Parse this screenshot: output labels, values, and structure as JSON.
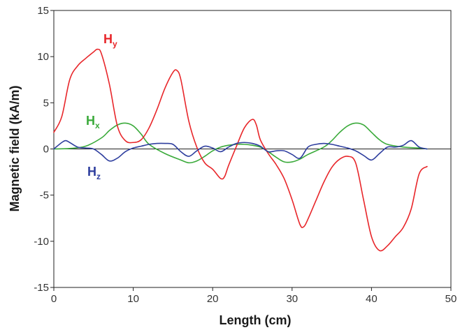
{
  "chart_data": {
    "type": "line",
    "title": "",
    "xlabel": "Length (cm)",
    "ylabel": "Magnetic field (kA/m)",
    "xlim": [
      0,
      50
    ],
    "ylim": [
      -15,
      15
    ],
    "xticks": [
      "0",
      "10",
      "20",
      "30",
      "40",
      "50"
    ],
    "yticks": [
      "15",
      "10",
      "5",
      "0",
      "-5",
      "-10",
      "-15"
    ],
    "grid": false,
    "zero_line": true,
    "series": [
      {
        "name": "Hy",
        "label_main": "H",
        "label_sub": "y",
        "color": "#e8262a",
        "x": [
          0,
          1,
          2,
          3,
          4,
          5,
          5.5,
          6,
          7,
          8,
          9,
          10,
          11,
          12,
          13,
          14,
          15,
          15.5,
          16,
          17,
          18,
          19,
          20,
          21,
          21.5,
          22,
          23,
          24,
          25,
          25.5,
          26,
          27,
          28,
          29,
          30,
          31,
          31.5,
          32,
          33,
          34,
          35,
          36,
          37,
          38,
          39,
          40,
          41,
          42,
          43,
          44,
          45,
          46,
          47
        ],
        "y": [
          1.8,
          3.5,
          7.5,
          9.0,
          9.8,
          10.5,
          10.8,
          10.3,
          7.0,
          2.5,
          0.9,
          0.7,
          1.0,
          2.3,
          4.3,
          6.6,
          8.3,
          8.5,
          7.5,
          3.0,
          0.2,
          -1.5,
          -2.2,
          -3.2,
          -3.0,
          -1.8,
          0.3,
          2.3,
          3.2,
          2.6,
          1.0,
          -0.5,
          -1.7,
          -3.2,
          -5.5,
          -8.2,
          -8.4,
          -7.6,
          -5.6,
          -3.6,
          -2.0,
          -1.1,
          -0.8,
          -1.5,
          -5.5,
          -9.5,
          -11.0,
          -10.5,
          -9.5,
          -8.5,
          -6.5,
          -2.7,
          -1.9
        ]
      },
      {
        "name": "Hx",
        "label_main": "H",
        "label_sub": "x",
        "color": "#3aaa3a",
        "x": [
          0,
          2,
          4,
          6,
          7,
          8,
          9,
          10,
          11,
          12,
          14,
          16,
          17,
          18,
          19,
          20,
          21,
          22,
          23,
          24,
          25,
          26,
          27,
          28,
          29,
          30,
          31,
          32,
          34,
          35,
          36,
          37,
          38,
          39,
          40,
          41,
          42,
          44,
          46,
          47
        ],
        "y": [
          0,
          0.05,
          0.3,
          1.2,
          2.0,
          2.6,
          2.8,
          2.5,
          1.6,
          0.5,
          -0.5,
          -1.2,
          -1.5,
          -1.3,
          -0.8,
          -0.2,
          0.2,
          0.4,
          0.5,
          0.5,
          0.4,
          0.2,
          -0.3,
          -0.9,
          -1.4,
          -1.4,
          -1.1,
          -0.6,
          0.2,
          0.9,
          1.8,
          2.5,
          2.8,
          2.6,
          1.8,
          1.0,
          0.5,
          0.2,
          0.1,
          0
        ]
      },
      {
        "name": "Hz",
        "label_main": "H",
        "label_sub": "z",
        "color": "#2e3e9e",
        "x": [
          0,
          1,
          1.5,
          2,
          3,
          4,
          5,
          6,
          7,
          8,
          9,
          10,
          11,
          12,
          13,
          14,
          15,
          16,
          17,
          18,
          19,
          20,
          21,
          22,
          23,
          24,
          25,
          26,
          27,
          28,
          29,
          30,
          31,
          32,
          33,
          34,
          35,
          36,
          37,
          38,
          39,
          40,
          41,
          42,
          43,
          44,
          45,
          46,
          47
        ],
        "y": [
          0,
          0.7,
          0.9,
          0.7,
          0.2,
          0.1,
          0,
          -0.6,
          -1.3,
          -1.0,
          -0.3,
          0.1,
          0.3,
          0.5,
          0.6,
          0.6,
          0.5,
          -0.3,
          -0.8,
          -0.2,
          0.3,
          0.1,
          -0.3,
          0.2,
          0.6,
          0.7,
          0.6,
          0.3,
          -0.3,
          -0.2,
          -0.2,
          -0.6,
          -1.0,
          0.2,
          0.5,
          0.6,
          0.5,
          0.3,
          0.1,
          -0.2,
          -0.7,
          -1.2,
          -0.5,
          0.2,
          0.2,
          0.4,
          0.9,
          0.2,
          0
        ]
      }
    ]
  }
}
